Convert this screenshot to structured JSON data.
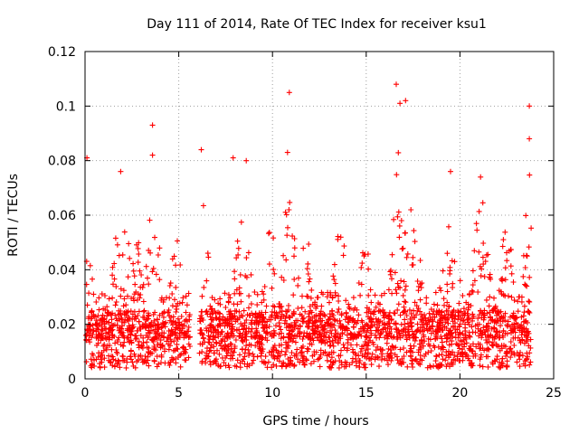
{
  "chart_data": {
    "type": "scatter",
    "title": "Day 111 of 2014, Rate Of TEC Index for receiver ksu1",
    "xlabel": "GPS time / hours",
    "ylabel": "ROTI / TECUs",
    "xlim": [
      0,
      25
    ],
    "ylim": [
      0,
      0.12
    ],
    "xticks": [
      0,
      5,
      10,
      15,
      20,
      25
    ],
    "xtick_labels": [
      "0",
      "5",
      "10",
      "15",
      "20",
      "25"
    ],
    "yticks": [
      0,
      0.02,
      0.04,
      0.06,
      0.08,
      0.1,
      0.12
    ],
    "ytick_labels": [
      "0",
      "0.02",
      "0.04",
      "0.06",
      "0.08",
      "0.1",
      "0.12"
    ],
    "grid": true,
    "marker": "+",
    "series": [
      {
        "name": "ROTI",
        "color": "#ff0000",
        "data_gap_hours": [
          5.6,
          6.1
        ],
        "baseline_range": [
          0.004,
          0.025
        ],
        "notable_points": [
          {
            "x": 0.1,
            "y": 0.081
          },
          {
            "x": 1.9,
            "y": 0.076
          },
          {
            "x": 3.6,
            "y": 0.093
          },
          {
            "x": 3.6,
            "y": 0.082
          },
          {
            "x": 6.2,
            "y": 0.084
          },
          {
            "x": 7.9,
            "y": 0.081
          },
          {
            "x": 8.6,
            "y": 0.08
          },
          {
            "x": 10.9,
            "y": 0.105
          },
          {
            "x": 10.8,
            "y": 0.083
          },
          {
            "x": 16.6,
            "y": 0.108
          },
          {
            "x": 16.8,
            "y": 0.101
          },
          {
            "x": 17.1,
            "y": 0.102
          },
          {
            "x": 19.5,
            "y": 0.076
          },
          {
            "x": 21.1,
            "y": 0.074
          },
          {
            "x": 23.7,
            "y": 0.1
          },
          {
            "x": 23.7,
            "y": 0.088
          }
        ]
      }
    ]
  }
}
